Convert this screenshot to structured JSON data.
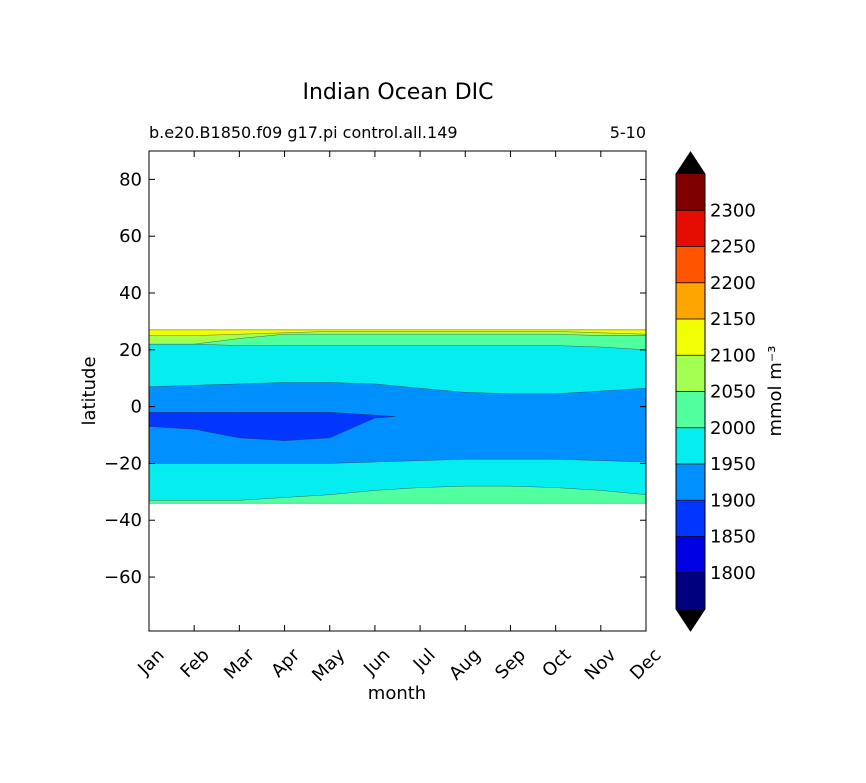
{
  "chart_data": {
    "type": "contourf",
    "title": "Indian Ocean DIC",
    "subtitle_left": "b.e20.B1850.f09 g17.pi control.all.149",
    "subtitle_right": "5-10",
    "xlabel": "month",
    "ylabel": "latitude",
    "x_categories": [
      "Jan",
      "Feb",
      "Mar",
      "Apr",
      "May",
      "Jun",
      "Jul",
      "Aug",
      "Sep",
      "Oct",
      "Nov",
      "Dec"
    ],
    "ylim": [
      -79,
      90
    ],
    "yticks": [
      80,
      60,
      40,
      20,
      0,
      -20,
      -40,
      -60
    ],
    "ytick_labels": [
      "80",
      "60",
      "40",
      "20",
      "0",
      "−20",
      "−40",
      "−60"
    ],
    "colorbar": {
      "label": "mmol m⁻³",
      "levels": [
        1750,
        1800,
        1850,
        1900,
        1950,
        2000,
        2050,
        2100,
        2150,
        2200,
        2250,
        2300,
        2350
      ],
      "tick_labels": [
        "1800",
        "1850",
        "1900",
        "1950",
        "2000",
        "2050",
        "2100",
        "2150",
        "2200",
        "2250",
        "2300"
      ],
      "colors": [
        "#00007f",
        "#0000e5",
        "#0036ff",
        "#0090ff",
        "#06edef",
        "#52ff9f",
        "#a3ff52",
        "#f1ff05",
        "#ffa500",
        "#ff5400",
        "#e50c00",
        "#7f0000"
      ],
      "extend": "both",
      "extend_colors": [
        "#000000",
        "#000000"
      ]
    },
    "bands": [
      {
        "level": "2000-2050",
        "color": "#52ff9f",
        "south": [
          -34,
          -34,
          -34,
          -34,
          -34,
          -34,
          -34,
          -34,
          -34,
          -34,
          -34,
          -34
        ],
        "north": [
          25,
          24,
          25,
          26,
          26,
          26,
          26,
          26,
          26,
          26,
          25,
          25
        ]
      },
      {
        "level": "1950-2000",
        "color": "#06edef",
        "south": [
          -33,
          -33,
          -33,
          -32,
          -31,
          -29.5,
          -28.5,
          -28,
          -28,
          -28.5,
          -29.5,
          -31
        ],
        "north": [
          22,
          22,
          21.5,
          21.5,
          21.5,
          21.5,
          21.5,
          21.5,
          21.5,
          21.5,
          21,
          20
        ]
      },
      {
        "level": "1900-1950",
        "color": "#0090ff",
        "south": [
          -20,
          -20,
          -20,
          -20,
          -20,
          -19.5,
          -19,
          -18.5,
          -18.5,
          -18.5,
          -19,
          -19.5
        ],
        "north": [
          7,
          7.5,
          8,
          8.5,
          8.5,
          8,
          6.5,
          5,
          4.5,
          4.5,
          5.5,
          6.5
        ]
      },
      {
        "level": "1850-1900",
        "color": "#0036ff",
        "south": [
          -7,
          -8,
          -11,
          -12,
          -11,
          -4,
          null,
          null,
          null,
          null,
          null,
          null
        ],
        "north": [
          -2,
          -2,
          -2,
          -2,
          -2,
          -3,
          null,
          null,
          null,
          null,
          null,
          null
        ]
      },
      {
        "level": "2050-2100",
        "color": "#a3ff52",
        "south": [
          22,
          22,
          24,
          25.5,
          25.5,
          25.5,
          25.5,
          25.5,
          25.5,
          25.5,
          25,
          25
        ],
        "north": [
          27,
          27,
          27,
          27,
          27,
          27,
          27,
          27,
          27,
          27,
          27,
          27
        ]
      },
      {
        "level": "2100-2150",
        "color": "#f1ff05",
        "south": [
          25,
          25,
          25.5,
          26,
          26.5,
          26.5,
          26.5,
          26.5,
          26.5,
          26.5,
          26,
          25.5
        ],
        "north": [
          27,
          27,
          27,
          27,
          27,
          27,
          27,
          27,
          27,
          27,
          27,
          27
        ]
      }
    ]
  }
}
